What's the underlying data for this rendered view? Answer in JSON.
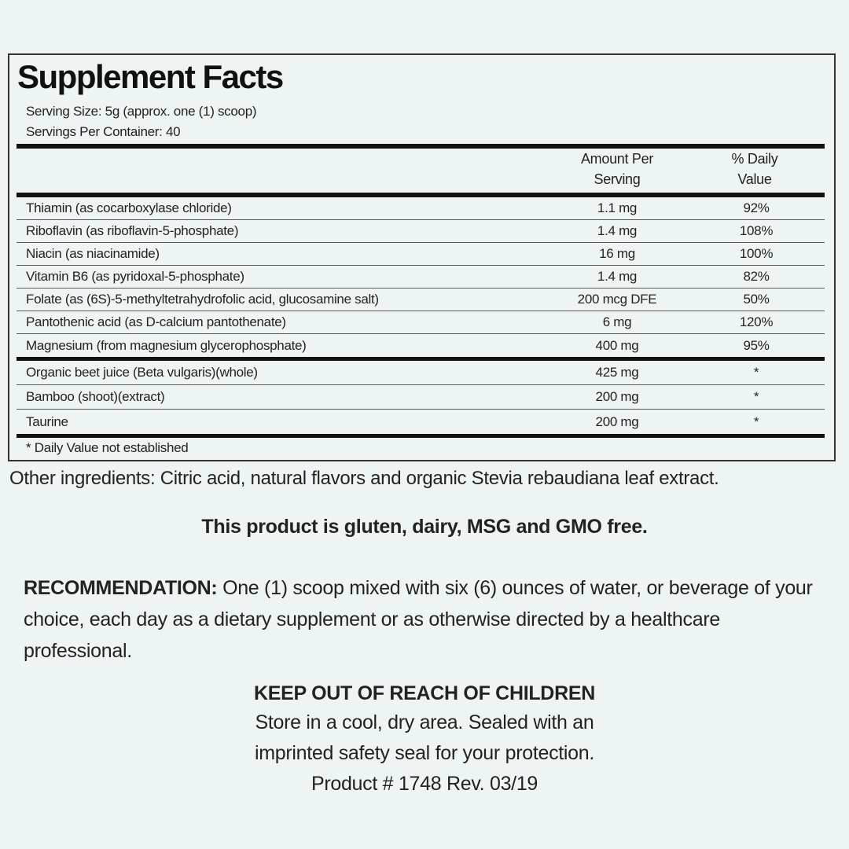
{
  "facts": {
    "title": "Supplement Facts",
    "serving_size": "Serving Size: 5g (approx. one (1) scoop)",
    "servings_per_container": "Servings Per Container: 40",
    "amount_header": [
      "Amount Per",
      "Serving"
    ],
    "dv_header": [
      "% Daily",
      "Value"
    ],
    "groups": [
      [
        [
          "Thiamin (as cocarboxylase chloride)",
          "1.1 mg",
          "92%"
        ],
        [
          "Riboflavin (as riboflavin-5-phosphate)",
          "1.4 mg",
          "108%"
        ],
        [
          "Niacin (as niacinamide)",
          "16 mg",
          "100%"
        ],
        [
          "Vitamin B6 (as pyridoxal-5-phosphate)",
          "1.4 mg",
          "82%"
        ],
        [
          "Folate (as (6S)-5-methyltetrahydrofolic acid, glucosamine salt)",
          "200 mcg DFE",
          "50%"
        ],
        [
          "Pantothenic acid (as D-calcium pantothenate)",
          "6 mg",
          "120%"
        ],
        [
          "Magnesium (from magnesium glycerophosphate)",
          "400 mg",
          "95%"
        ]
      ],
      [
        [
          "Organic beet juice (Beta vulgaris)(whole)",
          "425 mg",
          "*"
        ],
        [
          "Bamboo (shoot)(extract)",
          "200 mg",
          "*"
        ],
        [
          "Taurine",
          "200 mg",
          "*"
        ]
      ]
    ],
    "footnote": "* Daily Value not established"
  },
  "other_ingredients": "Other ingredients: Citric acid, natural flavors and organic Stevia rebaudiana leaf extract.",
  "free_statement": "This product is gluten, dairy, MSG and GMO free.",
  "recommendation": {
    "label": "RECOMMENDATION:",
    "text": "One (1) scoop mixed with six (6) ounces of water, or beverage of your choice, each day as a dietary supplement or as otherwise directed by a healthcare professional."
  },
  "warning": {
    "title": "KEEP OUT OF REACH OF CHILDREN",
    "lines": [
      "Store in a cool, dry area. Sealed with an",
      "imprinted safety seal for your protection.",
      "Product # 1748  Rev. 03/19"
    ]
  }
}
